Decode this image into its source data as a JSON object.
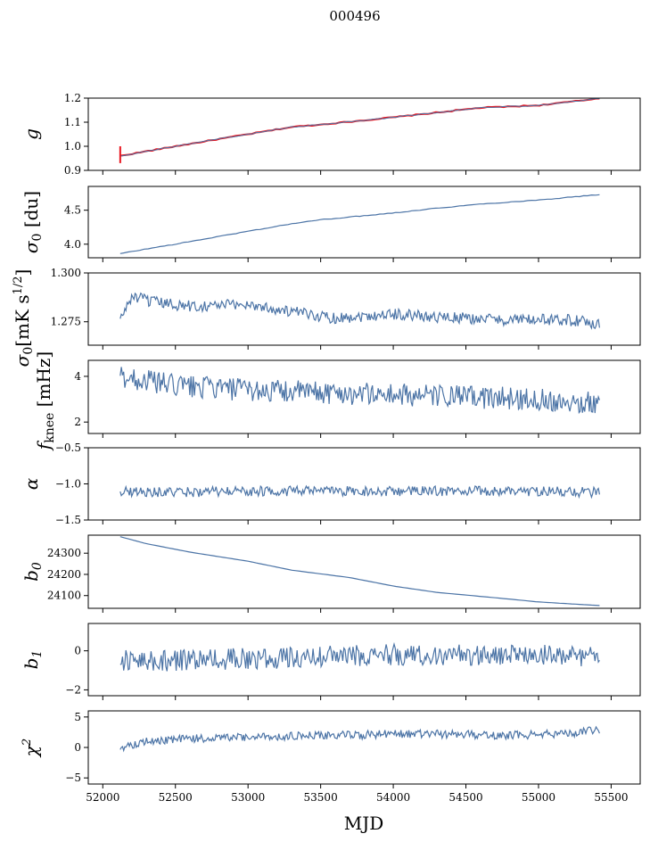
{
  "title": "000496",
  "chart_data": [
    {
      "type": "line",
      "ylabel": "g",
      "ylim": [
        0.9,
        1.2
      ],
      "yticks": [
        0.9,
        1.0,
        1.1,
        1.2
      ],
      "ytick_labels": [
        "0.9",
        "1.0",
        "1.1",
        "1.2"
      ],
      "xlim": [
        51900,
        55700
      ],
      "series": [
        {
          "color": "#e8141e",
          "x": [
            52120,
            52500,
            53000,
            53300,
            53500,
            54000,
            54300,
            54600,
            55000,
            55300,
            55420
          ],
          "y": [
            0.96,
            1.0,
            1.05,
            1.08,
            1.09,
            1.12,
            1.14,
            1.16,
            1.17,
            1.19,
            1.2
          ]
        },
        {
          "color": "#4c74a6",
          "x": [
            52120,
            52500,
            53000,
            53300,
            53500,
            54000,
            54300,
            54600,
            55000,
            55300,
            55420
          ],
          "y": [
            0.96,
            1.0,
            1.05,
            1.08,
            1.09,
            1.12,
            1.14,
            1.16,
            1.17,
            1.19,
            1.2
          ]
        }
      ]
    },
    {
      "type": "line",
      "ylabel": "σ0 [du]",
      "ylim": [
        3.8,
        4.85
      ],
      "yticks": [
        4.0,
        4.5
      ],
      "ytick_labels": [
        "4.0",
        "4.5"
      ],
      "xlim": [
        51900,
        55700
      ],
      "series": [
        {
          "color": "#4c74a6",
          "x": [
            52120,
            52300,
            52500,
            53000,
            53300,
            53500,
            54000,
            54300,
            54600,
            55000,
            55420
          ],
          "y": [
            3.86,
            3.93,
            4.0,
            4.19,
            4.3,
            4.36,
            4.46,
            4.53,
            4.59,
            4.65,
            4.73
          ]
        }
      ]
    },
    {
      "type": "line",
      "ylabel": "σ0[mK s1/2]",
      "ylim": [
        1.263,
        1.3
      ],
      "yticks": [
        1.275,
        1.3
      ],
      "ytick_labels": [
        "1.275",
        "1.300"
      ],
      "xlim": [
        51900,
        55700
      ],
      "series": [
        {
          "color": "#4c74a6",
          "x": [
            52120,
            52200,
            52350,
            52600,
            53000,
            53300,
            53600,
            54000,
            54400,
            54800,
            55200,
            55420
          ],
          "y": [
            1.276,
            1.288,
            1.285,
            1.283,
            1.284,
            1.28,
            1.277,
            1.279,
            1.277,
            1.276,
            1.276,
            1.274
          ]
        }
      ]
    },
    {
      "type": "line",
      "ylabel": "fknee [mHz]",
      "ylim": [
        1.5,
        4.7
      ],
      "yticks": [
        2,
        4
      ],
      "ytick_labels": [
        "2",
        "4"
      ],
      "xlim": [
        51900,
        55700
      ],
      "series": [
        {
          "color": "#4c74a6",
          "x": [
            52120,
            52500,
            53000,
            53500,
            54000,
            54500,
            55000,
            55420
          ],
          "y": [
            4.0,
            3.6,
            3.4,
            3.3,
            3.2,
            3.1,
            3.0,
            2.8
          ]
        }
      ]
    },
    {
      "type": "line",
      "ylabel": "α",
      "ylim": [
        -1.5,
        -0.5
      ],
      "yticks": [
        -1.5,
        -1.0,
        -0.5
      ],
      "ytick_labels": [
        "−1.5",
        "−1.0",
        "−0.5"
      ],
      "xlim": [
        51900,
        55700
      ],
      "series": [
        {
          "color": "#4c74a6",
          "x": [
            52120,
            52500,
            53000,
            53500,
            54000,
            54500,
            55000,
            55420
          ],
          "y": [
            -1.1,
            -1.12,
            -1.1,
            -1.1,
            -1.1,
            -1.1,
            -1.1,
            -1.12
          ]
        }
      ]
    },
    {
      "type": "line",
      "ylabel": "b0",
      "ylim": [
        24040,
        24385
      ],
      "yticks": [
        24100,
        24200,
        24300
      ],
      "ytick_labels": [
        "24100",
        "24200",
        "24300"
      ],
      "xlim": [
        51900,
        55700
      ],
      "series": [
        {
          "color": "#4c74a6",
          "x": [
            52120,
            52300,
            52600,
            53000,
            53300,
            53700,
            54000,
            54300,
            54700,
            55000,
            55420
          ],
          "y": [
            24378,
            24345,
            24305,
            24262,
            24220,
            24185,
            24145,
            24115,
            24090,
            24070,
            24053
          ]
        }
      ]
    },
    {
      "type": "line",
      "ylabel": "b1",
      "ylim": [
        -2.3,
        1.4
      ],
      "yticks": [
        -2,
        0
      ],
      "ytick_labels": [
        "−2",
        "0"
      ],
      "xlim": [
        51900,
        55700
      ],
      "series": [
        {
          "color": "#4c74a6",
          "x": [
            52120,
            52500,
            53000,
            53500,
            54000,
            54500,
            55000,
            55420
          ],
          "y": [
            -0.5,
            -0.5,
            -0.4,
            -0.3,
            -0.2,
            -0.2,
            -0.2,
            -0.3
          ]
        }
      ]
    },
    {
      "type": "line",
      "ylabel": "χ2",
      "ylim": [
        -6,
        6
      ],
      "yticks": [
        -5,
        0,
        5
      ],
      "ytick_labels": [
        "−5",
        "0",
        "5"
      ],
      "xlabel": "MJD",
      "xticks": [
        52000,
        52500,
        53000,
        53500,
        54000,
        54500,
        55000,
        55500
      ],
      "xtick_labels": [
        "52000",
        "52500",
        "53000",
        "53500",
        "54000",
        "54500",
        "55000",
        "55500"
      ],
      "xlim": [
        51900,
        55700
      ],
      "series": [
        {
          "color": "#4c74a6",
          "x": [
            52120,
            52300,
            52700,
            53200,
            53700,
            54000,
            54400,
            54800,
            55200,
            55420
          ],
          "y": [
            0.0,
            1.0,
            1.5,
            1.8,
            2.0,
            2.2,
            2.2,
            2.0,
            2.3,
            3.0
          ]
        }
      ]
    }
  ]
}
